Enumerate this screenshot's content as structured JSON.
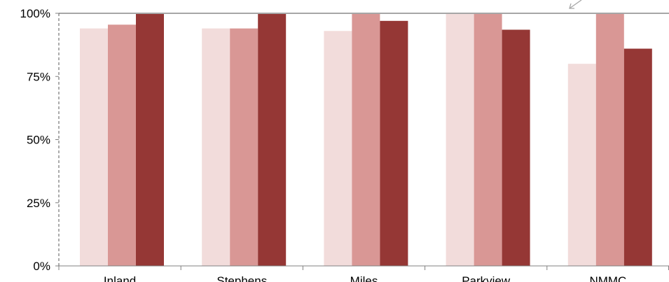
{
  "chart_data": {
    "type": "bar",
    "categories": [
      "Inland",
      "Stephens",
      "Miles",
      "Parkview",
      "NMMC"
    ],
    "series": [
      {
        "values": [
          94,
          94,
          93,
          100,
          80
        ],
        "color": "#f2dcdb"
      },
      {
        "values": [
          95.5,
          94,
          100,
          100,
          100
        ],
        "color": "#d99795"
      },
      {
        "values": [
          100,
          100,
          97,
          93.5,
          86
        ],
        "color": "#953735"
      }
    ],
    "ylim": [
      0,
      100
    ],
    "yticks": [
      {
        "value": 0,
        "label": "0%"
      },
      {
        "value": 25,
        "label": "25%"
      },
      {
        "value": 50,
        "label": "50%"
      },
      {
        "value": 75,
        "label": "75%"
      },
      {
        "value": 100,
        "label": "100%"
      }
    ],
    "reference_line": {
      "value": 100,
      "color": "#a6a6a6"
    },
    "title": "",
    "xlabel": "",
    "ylabel": "",
    "grid": false,
    "legend": "none"
  }
}
